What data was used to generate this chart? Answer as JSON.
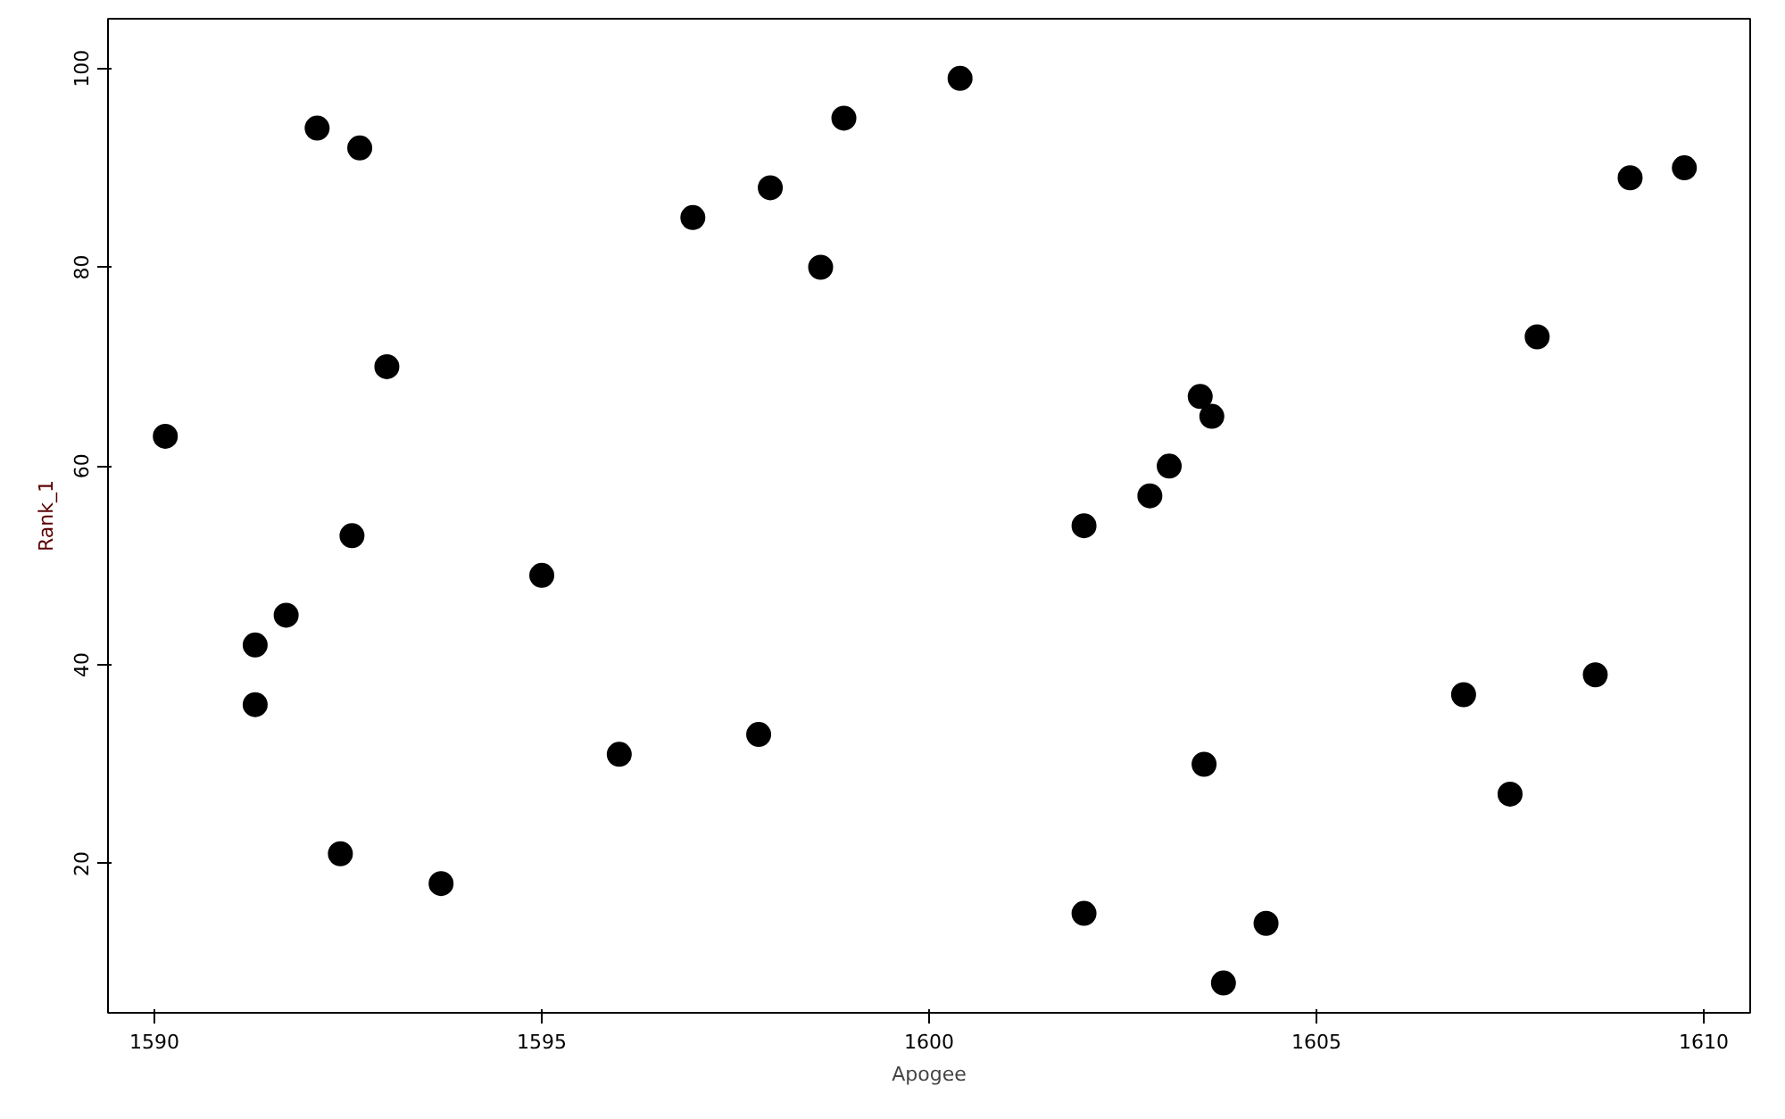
{
  "chart_data": {
    "type": "scatter",
    "xlabel": "Apogee",
    "ylabel": "Rank_1",
    "x": [
      1590.14,
      1591.3,
      1591.3,
      1591.7,
      1592.1,
      1592.65,
      1592.4,
      1592.55,
      1593.0,
      1593.7,
      1595.0,
      1596.0,
      1596.95,
      1597.8,
      1597.95,
      1598.6,
      1598.9,
      1600.4,
      1602.0,
      1602.0,
      1602.85,
      1603.1,
      1603.5,
      1603.55,
      1603.65,
      1603.8,
      1604.35,
      1606.9,
      1607.5,
      1607.85,
      1608.6,
      1609.05,
      1609.75
    ],
    "series": [
      {
        "color": "#000000",
        "values": [
          63,
          42,
          36,
          45,
          94,
          92,
          21,
          53,
          70,
          18,
          49,
          31,
          85,
          33,
          88,
          80,
          95,
          99,
          54,
          15,
          57,
          60,
          67,
          30,
          65,
          8,
          14,
          37,
          27,
          73,
          39,
          89,
          90
        ]
      }
    ],
    "xlim": [
      1589.4,
      1610.6
    ],
    "ylim": [
      5,
      105
    ],
    "xticks": [
      1590,
      1595,
      1600,
      1605,
      1610
    ],
    "yticks": [
      20,
      40,
      60,
      80,
      100
    ],
    "marker": "circle",
    "grid": false
  }
}
